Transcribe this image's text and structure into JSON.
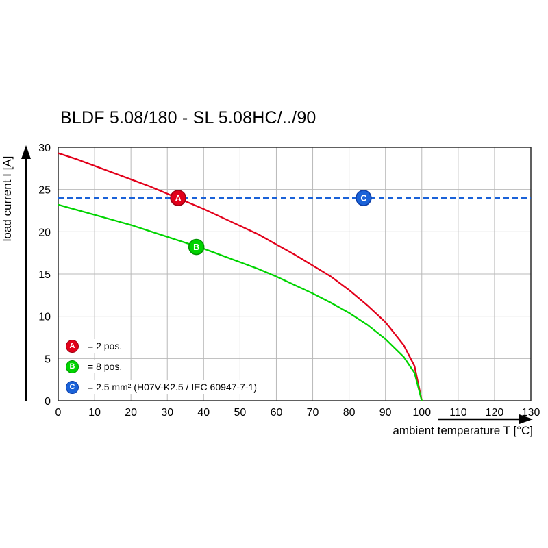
{
  "title": "BLDF 5.08/180 - SL 5.08HC/../90",
  "legend": {
    "items": [
      {
        "letter": "A",
        "label": "= 2 pos."
      },
      {
        "letter": "B",
        "label": "= 8 pos."
      },
      {
        "letter": "C",
        "label": "= 2.5 mm² (H07V-K2.5 / IEC 60947-7-1)"
      }
    ]
  },
  "chart_data": {
    "type": "line",
    "title": "BLDF 5.08/180 - SL 5.08HC/../90",
    "xlabel": "ambient temperature T [°C]",
    "ylabel": "load current I [A]",
    "xlim": [
      0,
      130
    ],
    "ylim": [
      0,
      30
    ],
    "grid": true,
    "legend_position": "bottom-left-inside",
    "x_ticks": [
      0,
      10,
      20,
      30,
      40,
      50,
      60,
      70,
      80,
      90,
      100,
      110,
      120,
      130
    ],
    "y_ticks": [
      0,
      5,
      10,
      15,
      20,
      25,
      30
    ],
    "series": [
      {
        "name": "A = 2 pos.",
        "color": "#e2001a",
        "edge": "#9c0012",
        "style": "solid",
        "x": [
          0,
          5,
          10,
          15,
          20,
          25,
          30,
          35,
          40,
          45,
          50,
          55,
          60,
          65,
          70,
          75,
          80,
          85,
          90,
          95,
          98,
          100
        ],
        "y": [
          29.3,
          28.6,
          27.8,
          27.0,
          26.2,
          25.4,
          24.5,
          23.6,
          22.7,
          21.7,
          20.7,
          19.7,
          18.5,
          17.3,
          16.0,
          14.7,
          13.1,
          11.3,
          9.3,
          6.6,
          4.1,
          0
        ],
        "marker": {
          "label": "A",
          "x": 33,
          "y": 24
        }
      },
      {
        "name": "B = 8 pos.",
        "color": "#00d400",
        "edge": "#009400",
        "style": "solid",
        "x": [
          0,
          5,
          10,
          15,
          20,
          25,
          30,
          35,
          40,
          45,
          50,
          55,
          60,
          65,
          70,
          75,
          80,
          85,
          90,
          95,
          98,
          100
        ],
        "y": [
          23.2,
          22.6,
          22.0,
          21.4,
          20.8,
          20.1,
          19.4,
          18.7,
          18.0,
          17.2,
          16.4,
          15.6,
          14.7,
          13.7,
          12.7,
          11.6,
          10.4,
          9.0,
          7.3,
          5.2,
          3.3,
          0
        ],
        "marker": {
          "label": "B",
          "x": 38,
          "y": 18.2
        }
      },
      {
        "name": "C = 2.5 mm² (H07V-K2.5 / IEC 60947-7-1)",
        "color": "#1a62d8",
        "edge": "#0d3ea8",
        "style": "dashed",
        "x": [
          0,
          130
        ],
        "y": [
          24,
          24
        ],
        "marker": {
          "label": "C",
          "x": 84,
          "y": 24
        }
      }
    ]
  }
}
